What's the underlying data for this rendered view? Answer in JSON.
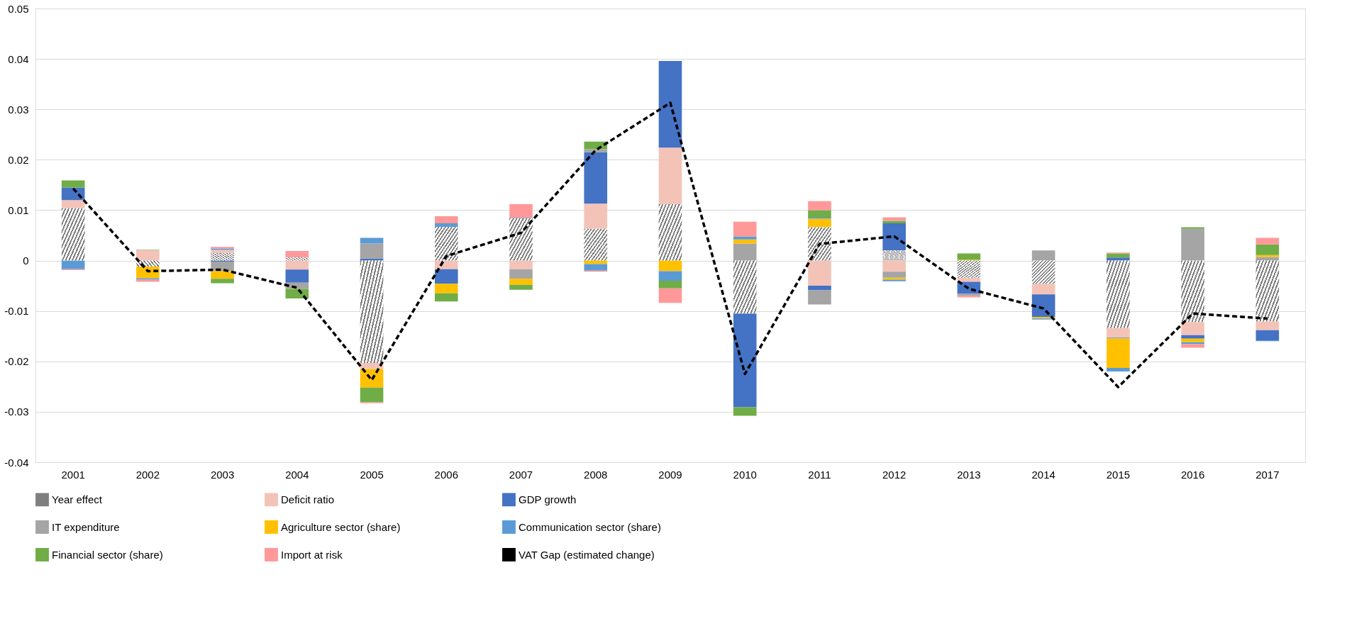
{
  "chart_data": {
    "type": "bar",
    "stacked": true,
    "categories": [
      "2001",
      "2002",
      "2003",
      "2004",
      "2005",
      "2006",
      "2007",
      "2008",
      "2009",
      "2010",
      "2011",
      "2012",
      "2013",
      "2014",
      "2015",
      "2016",
      "2017"
    ],
    "series": [
      {
        "name": "Year effect",
        "color": "#7f7f7f",
        "values": [
          0.0104,
          -0.0012,
          0.0015,
          0.0006,
          -0.0203,
          0.0067,
          0.0084,
          0.0063,
          0.0112,
          -0.0105,
          0.0066,
          0.002,
          -0.0034,
          -0.0046,
          -0.0134,
          -0.0122,
          -0.0121
        ]
      },
      {
        "name": "Deficit ratio",
        "color": "#f4c3b8",
        "values": [
          0.0016,
          0.0021,
          0.0006,
          -0.0018,
          -0.0012,
          -0.0017,
          -0.0017,
          0.005,
          0.0112,
          0,
          -0.005,
          -0.0022,
          -0.0008,
          -0.0021,
          -0.0018,
          -0.0026,
          -0.0017
        ]
      },
      {
        "name": "GDP growth",
        "color": "#4472c4",
        "values": [
          0.0025,
          0,
          -0.0002,
          -0.0026,
          0.0004,
          -0.0029,
          0,
          0.0102,
          0.0172,
          -0.0186,
          -0.0009,
          0.0054,
          -0.0024,
          -0.0045,
          0.0006,
          -0.0007,
          -0.002
        ]
      },
      {
        "name": "IT expenditure",
        "color": "#a5a5a5",
        "values": [
          0,
          0,
          -0.0019,
          -0.0012,
          0.003,
          0,
          -0.0019,
          0.0006,
          0,
          0.0034,
          -0.0028,
          -0.0012,
          -0.0004,
          0.002,
          -0.0003,
          0.0063,
          0.0007
        ]
      },
      {
        "name": "Agriculture sector (share)",
        "color": "#ffc000",
        "values": [
          0,
          -0.0023,
          -0.0015,
          0,
          -0.0037,
          -0.0019,
          -0.0012,
          -0.0007,
          -0.0021,
          0.0008,
          0.0017,
          -0.0004,
          0.0002,
          -0.0003,
          -0.0058,
          -0.0007,
          0.0004
        ]
      },
      {
        "name": "Communication sector (share)",
        "color": "#5b9bd5",
        "values": [
          -0.0017,
          -0.0003,
          0.0003,
          0,
          0.0011,
          0.0007,
          0.0001,
          -0.0013,
          -0.0019,
          0.0006,
          0.0002,
          -0.0003,
          0,
          -0.0002,
          -0.0007,
          -0.0004,
          -0.0002
        ]
      },
      {
        "name": "Financial sector (share)",
        "color": "#70ad47",
        "values": [
          0.0014,
          0.0001,
          -0.0009,
          -0.0019,
          -0.0029,
          -0.0016,
          -0.001,
          0.0015,
          -0.0015,
          -0.0017,
          0.0015,
          0.0005,
          0.0012,
          0,
          0.0008,
          0.0003,
          0.0021
        ]
      },
      {
        "name": "Import at risk",
        "color": "#ff9999",
        "values": [
          -0.0002,
          -0.0004,
          0.0003,
          0.0013,
          -0.0002,
          0.0014,
          0.0027,
          -0.0002,
          -0.0029,
          0.0029,
          0.0018,
          0.0007,
          -0.0003,
          0,
          0.0002,
          -0.0007,
          0.0013
        ]
      },
      {
        "name": "VAT Gap (estimated change)",
        "type": "line",
        "color": "#000000",
        "line_style": "dashed",
        "marker": "none",
        "values": [
          0.0143,
          -0.0021,
          -0.0018,
          -0.0054,
          -0.0237,
          0.0009,
          0.0055,
          0.0219,
          0.0313,
          -0.0225,
          0.0033,
          0.0048,
          -0.0056,
          -0.0095,
          -0.0251,
          -0.0105,
          -0.0115
        ]
      }
    ],
    "ylim": [
      -0.04,
      0.05
    ],
    "yticks": [
      -0.04,
      -0.03,
      -0.02,
      -0.01,
      0,
      0.01,
      0.02,
      0.03,
      0.04,
      0.05
    ],
    "grid": "y",
    "legend": "bottom"
  }
}
